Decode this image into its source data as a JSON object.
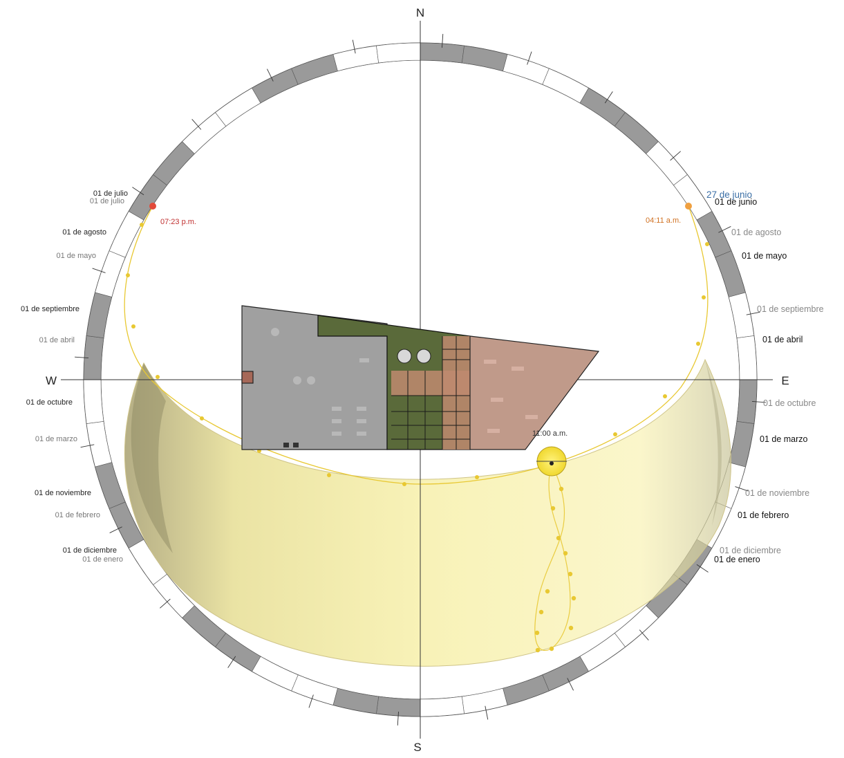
{
  "compass": {
    "north": "N",
    "south": "S",
    "east": "E",
    "west": "W"
  },
  "highlight_date": "27 de junio",
  "times": {
    "sunset": "07:23 p.m.",
    "sunrise": "04:11 a.m.",
    "current": "11:00 a.m."
  },
  "west_labels": {
    "julio_1": "01 de julio",
    "julio_2": "01 de julio",
    "agosto": "01 de agosto",
    "mayo": "01 de mayo",
    "septiembre": "01 de septiembre",
    "abril": "01 de abril",
    "octubre": "01 de octubre",
    "marzo": "01 de marzo",
    "noviembre": "01 de noviembre",
    "febrero": "01 de febrero",
    "diciembre": "01 de diciembre",
    "enero": "01 de enero"
  },
  "east_labels": {
    "junio": "01 de junio",
    "agosto": "01 de agosto",
    "mayo": "01 de mayo",
    "septiembre": "01 de septiembre",
    "abril": "01 de abril",
    "octubre": "01 de octubre",
    "marzo": "01 de marzo",
    "noviembre": "01 de noviembre",
    "febrero": "01 de febrero",
    "diciembre": "01 de diciembre",
    "enero": "01 de enero"
  },
  "colors": {
    "sun_band": "#f3e88a",
    "sun_path": "#e8c832",
    "sunset_marker": "#e24a3a",
    "sunrise_marker": "#f0a040",
    "highlight_date": "#3a6ea5",
    "site_gray": "#a0a0a0",
    "site_green": "#5a6a3a",
    "site_brown": "#c09a8a"
  }
}
